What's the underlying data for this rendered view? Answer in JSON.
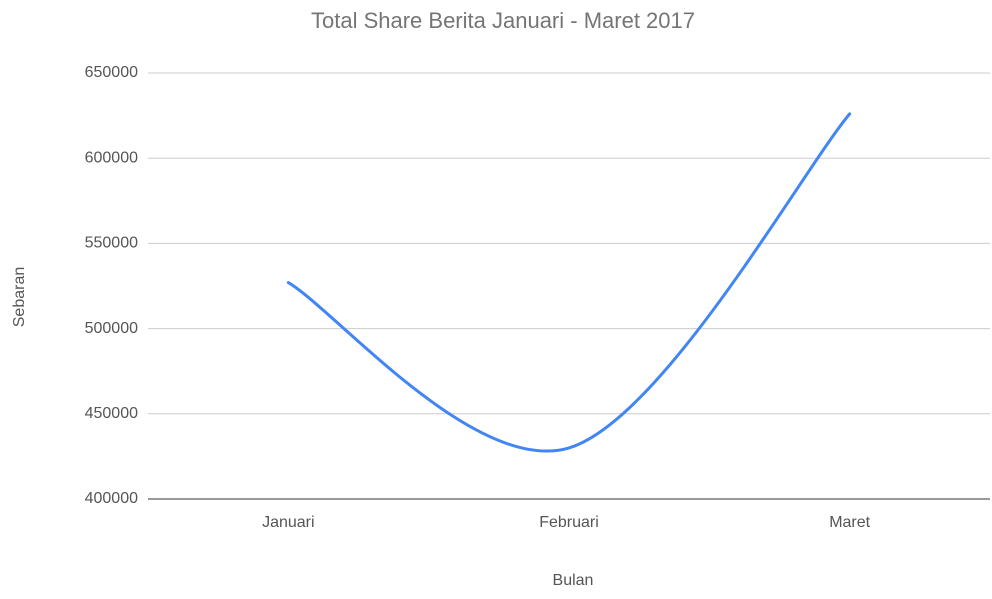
{
  "chart_data": {
    "type": "line",
    "title": "Total Share Berita Januari - Maret 2017",
    "x_label": "Bulan",
    "y_label": "Sebaran",
    "categories": [
      "Januari",
      "Februari",
      "Maret"
    ],
    "series": [
      {
        "name": "Sebaran",
        "color": "#4285f4",
        "values": [
          527000,
          430000,
          626000
        ]
      }
    ],
    "ylim": [
      400000,
      650000
    ],
    "yticks": [
      400000,
      450000,
      500000,
      550000,
      600000,
      650000
    ],
    "grid": true,
    "smooth": true
  }
}
